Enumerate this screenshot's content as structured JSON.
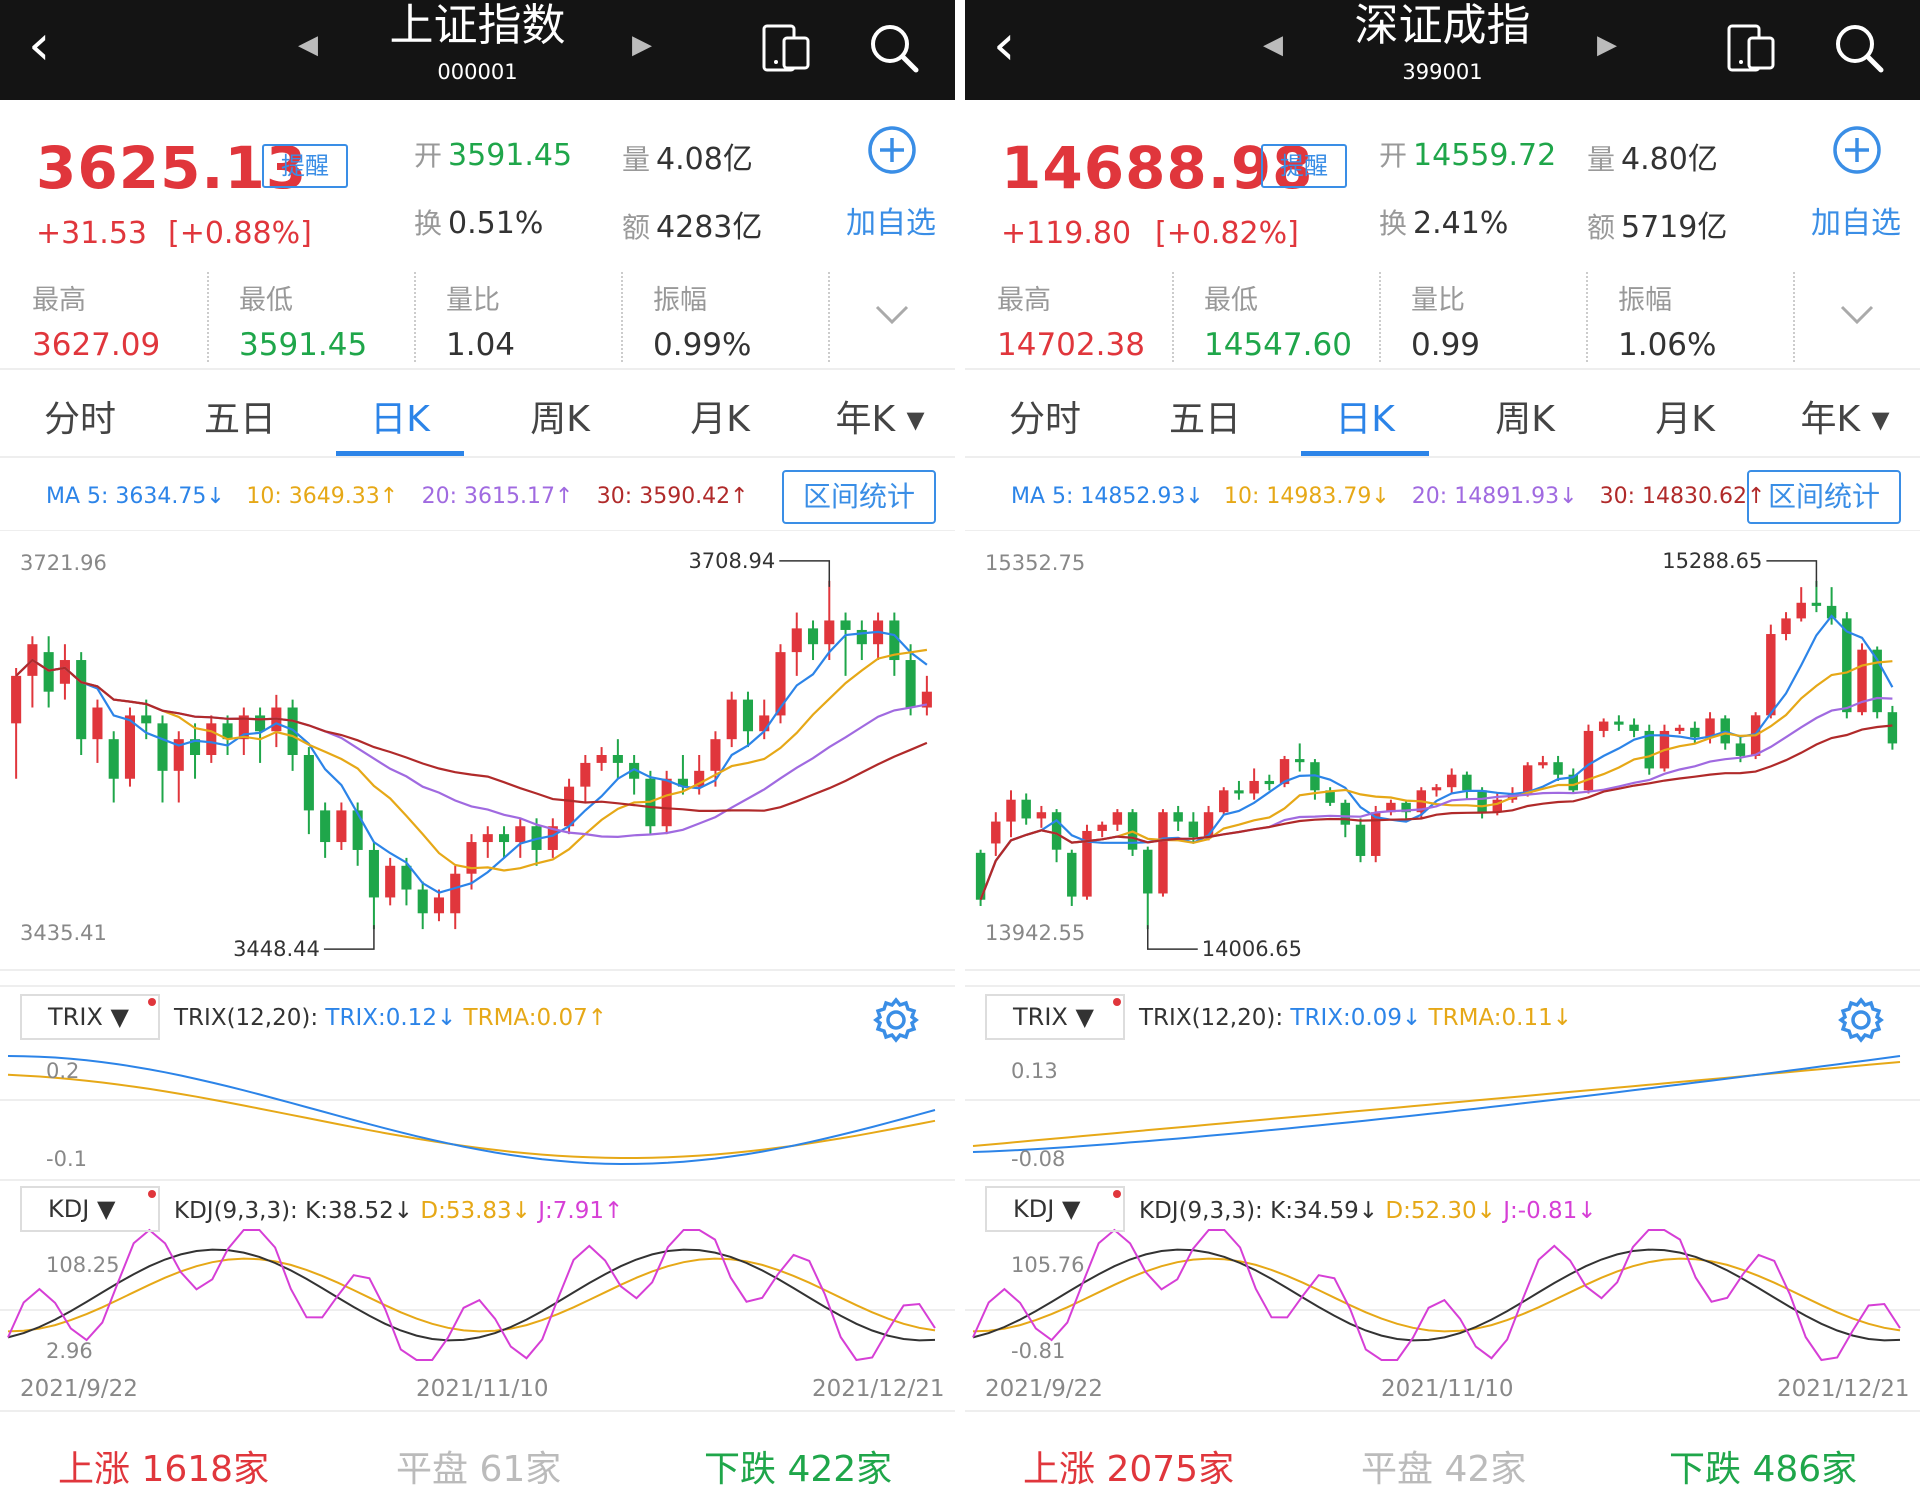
{
  "panels": [
    {
      "title": "上证指数",
      "code": "000001",
      "price": "3625.13",
      "remind_label": "提醒",
      "change": "+31.53",
      "change_pct": "[+0.88%]",
      "open": {
        "label": "开",
        "value": "3591.45"
      },
      "volume": {
        "label": "量",
        "value": "4.08亿"
      },
      "turnover_rate": {
        "label": "换",
        "value": "0.51%"
      },
      "amount": {
        "label": "额",
        "value": "4283亿"
      },
      "add_label": "加自选",
      "stats": [
        {
          "label": "最高",
          "value": "3627.09",
          "color": "#e0363c"
        },
        {
          "label": "最低",
          "value": "3591.45",
          "color": "#1fa64a"
        },
        {
          "label": "量比",
          "value": "1.04",
          "color": "#333333"
        },
        {
          "label": "振幅",
          "value": "0.99%",
          "color": "#333333"
        }
      ],
      "tabs": [
        "分时",
        "五日",
        "日K",
        "周K",
        "月K",
        "年K ▾"
      ],
      "active_tab": 2,
      "ma": [
        {
          "text": "MA 5: 3634.75↓",
          "color": "#2c84e8"
        },
        {
          "text": "10: 3649.33↑",
          "color": "#e6a817"
        },
        {
          "text": "20: 3615.17↑",
          "color": "#a06ae0"
        },
        {
          "text": "30: 3590.42↑",
          "color": "#b02a2a"
        }
      ],
      "range_label": "区间统计",
      "kline": {
        "y_max_label": "3721.96",
        "y_min_label": "3435.41",
        "high_mark": "3708.94",
        "low_mark": "3448.44",
        "candles": [
          [
            3610,
            3640,
            3575,
            3645
          ],
          [
            3640,
            3660,
            3620,
            3665
          ],
          [
            3655,
            3630,
            3620,
            3665
          ],
          [
            3635,
            3650,
            3625,
            3660
          ],
          [
            3650,
            3600,
            3590,
            3655
          ],
          [
            3600,
            3620,
            3585,
            3625
          ],
          [
            3600,
            3575,
            3560,
            3605
          ],
          [
            3575,
            3615,
            3570,
            3620
          ],
          [
            3615,
            3610,
            3600,
            3625
          ],
          [
            3610,
            3580,
            3560,
            3615
          ],
          [
            3580,
            3600,
            3560,
            3605
          ],
          [
            3600,
            3590,
            3575,
            3610
          ],
          [
            3590,
            3610,
            3585,
            3615
          ],
          [
            3610,
            3600,
            3590,
            3615
          ],
          [
            3600,
            3615,
            3590,
            3620
          ],
          [
            3615,
            3605,
            3585,
            3620
          ],
          [
            3605,
            3620,
            3595,
            3628
          ],
          [
            3620,
            3590,
            3580,
            3625
          ],
          [
            3590,
            3555,
            3540,
            3595
          ],
          [
            3555,
            3535,
            3525,
            3560
          ],
          [
            3535,
            3555,
            3530,
            3560
          ],
          [
            3555,
            3530,
            3520,
            3560
          ],
          [
            3530,
            3500,
            3480,
            3535
          ],
          [
            3500,
            3520,
            3495,
            3525
          ],
          [
            3520,
            3505,
            3495,
            3525
          ],
          [
            3505,
            3490,
            3480,
            3510
          ],
          [
            3490,
            3500,
            3485,
            3505
          ],
          [
            3490,
            3515,
            3480,
            3520
          ],
          [
            3515,
            3535,
            3505,
            3540
          ],
          [
            3535,
            3540,
            3525,
            3545
          ],
          [
            3540,
            3535,
            3525,
            3545
          ],
          [
            3535,
            3545,
            3525,
            3550
          ],
          [
            3545,
            3530,
            3520,
            3550
          ],
          [
            3530,
            3545,
            3525,
            3550
          ],
          [
            3545,
            3570,
            3540,
            3575
          ],
          [
            3570,
            3585,
            3560,
            3590
          ],
          [
            3585,
            3590,
            3580,
            3595
          ],
          [
            3590,
            3585,
            3575,
            3600
          ],
          [
            3585,
            3575,
            3565,
            3590
          ],
          [
            3575,
            3545,
            3540,
            3580
          ],
          [
            3545,
            3575,
            3540,
            3580
          ],
          [
            3575,
            3570,
            3565,
            3590
          ],
          [
            3570,
            3580,
            3565,
            3590
          ],
          [
            3580,
            3600,
            3570,
            3605
          ],
          [
            3600,
            3625,
            3595,
            3630
          ],
          [
            3625,
            3605,
            3595,
            3630
          ],
          [
            3605,
            3615,
            3600,
            3625
          ],
          [
            3615,
            3655,
            3610,
            3660
          ],
          [
            3655,
            3670,
            3640,
            3680
          ],
          [
            3670,
            3660,
            3650,
            3675
          ],
          [
            3660,
            3675,
            3650,
            3700
          ],
          [
            3675,
            3669,
            3640,
            3680
          ],
          [
            3669,
            3660,
            3650,
            3675
          ],
          [
            3660,
            3675,
            3650,
            3680
          ],
          [
            3675,
            3650,
            3640,
            3680
          ],
          [
            3650,
            3620,
            3615,
            3660
          ],
          [
            3620,
            3630,
            3615,
            3640
          ]
        ]
      },
      "trix": {
        "button": "TRIX",
        "params": "TRIX(12,20):",
        "trix_val": "TRIX:0.12↓",
        "trma_val": "TRMA:0.07↑",
        "y_top_label": "0.2",
        "y_bot_label": "-0.1"
      },
      "kdj": {
        "button": "KDJ",
        "params": "KDJ(9,3,3):",
        "k_val": "K:38.52↓",
        "d_val": "D:53.83↓",
        "j_val": "J:7.91↑",
        "y_top_label": "108.25",
        "y_bot_label": "2.96"
      },
      "dates": [
        "2021/9/22",
        "2021/11/10",
        "2021/12/21"
      ],
      "breadth": {
        "up_label": "上涨",
        "up_value": "1618家",
        "flat_label": "平盘",
        "flat_value": "61家",
        "down_label": "下跌",
        "down_value": "422家"
      }
    },
    {
      "title": "深证成指",
      "code": "399001",
      "price": "14688.98",
      "remind_label": "提醒",
      "change": "+119.80",
      "change_pct": "[+0.82%]",
      "open": {
        "label": "开",
        "value": "14559.72"
      },
      "volume": {
        "label": "量",
        "value": "4.80亿"
      },
      "turnover_rate": {
        "label": "换",
        "value": "2.41%"
      },
      "amount": {
        "label": "额",
        "value": "5719亿"
      },
      "add_label": "加自选",
      "stats": [
        {
          "label": "最高",
          "value": "14702.38",
          "color": "#e0363c"
        },
        {
          "label": "最低",
          "value": "14547.60",
          "color": "#1fa64a"
        },
        {
          "label": "量比",
          "value": "0.99",
          "color": "#333333"
        },
        {
          "label": "振幅",
          "value": "1.06%",
          "color": "#333333"
        }
      ],
      "tabs": [
        "分时",
        "五日",
        "日K",
        "周K",
        "月K",
        "年K ▾"
      ],
      "active_tab": 2,
      "ma": [
        {
          "text": "MA 5: 14852.93↓",
          "color": "#2c84e8"
        },
        {
          "text": "10: 14983.79↓",
          "color": "#e6a817"
        },
        {
          "text": "20: 14891.93↓",
          "color": "#a06ae0"
        },
        {
          "text": "30: 14830.62↑",
          "color": "#b02a2a"
        }
      ],
      "range_label": "区间统计",
      "kline": {
        "y_max_label": "15352.75",
        "y_min_label": "13942.55",
        "high_mark": "15288.65",
        "low_mark": "14006.65",
        "candles": [
          [
            14250,
            14100,
            14080,
            14260
          ],
          [
            14280,
            14350,
            14240,
            14380
          ],
          [
            14350,
            14420,
            14300,
            14450
          ],
          [
            14420,
            14360,
            14340,
            14440
          ],
          [
            14360,
            14380,
            14330,
            14400
          ],
          [
            14380,
            14260,
            14220,
            14390
          ],
          [
            14250,
            14110,
            14080,
            14260
          ],
          [
            14110,
            14320,
            14100,
            14340
          ],
          [
            14320,
            14340,
            14300,
            14350
          ],
          [
            14340,
            14380,
            14320,
            14390
          ],
          [
            14380,
            14260,
            14240,
            14390
          ],
          [
            14260,
            14120,
            14006,
            14270
          ],
          [
            14120,
            14380,
            14110,
            14390
          ],
          [
            14380,
            14350,
            14320,
            14400
          ],
          [
            14350,
            14300,
            14280,
            14380
          ],
          [
            14300,
            14380,
            14290,
            14400
          ],
          [
            14380,
            14450,
            14370,
            14460
          ],
          [
            14450,
            14440,
            14420,
            14480
          ],
          [
            14440,
            14480,
            14420,
            14520
          ],
          [
            14480,
            14470,
            14450,
            14500
          ],
          [
            14470,
            14550,
            14460,
            14560
          ],
          [
            14550,
            14540,
            14510,
            14600
          ],
          [
            14540,
            14450,
            14420,
            14550
          ],
          [
            14450,
            14410,
            14400,
            14460
          ],
          [
            14410,
            14340,
            14300,
            14420
          ],
          [
            14340,
            14240,
            14220,
            14360
          ],
          [
            14240,
            14380,
            14220,
            14400
          ],
          [
            14380,
            14410,
            14370,
            14420
          ],
          [
            14410,
            14380,
            14360,
            14420
          ],
          [
            14380,
            14450,
            14360,
            14460
          ],
          [
            14450,
            14460,
            14430,
            14470
          ],
          [
            14460,
            14500,
            14440,
            14520
          ],
          [
            14500,
            14450,
            14420,
            14510
          ],
          [
            14450,
            14380,
            14360,
            14460
          ],
          [
            14380,
            14420,
            14370,
            14440
          ],
          [
            14420,
            14440,
            14410,
            14460
          ],
          [
            14440,
            14530,
            14430,
            14540
          ],
          [
            14530,
            14540,
            14520,
            14560
          ],
          [
            14540,
            14500,
            14480,
            14560
          ],
          [
            14500,
            14450,
            14440,
            14520
          ],
          [
            14450,
            14640,
            14440,
            14660
          ],
          [
            14640,
            14670,
            14620,
            14680
          ],
          [
            14670,
            14660,
            14640,
            14690
          ],
          [
            14660,
            14640,
            14620,
            14680
          ],
          [
            14640,
            14520,
            14500,
            14660
          ],
          [
            14520,
            14640,
            14510,
            14660
          ],
          [
            14640,
            14650,
            14630,
            14660
          ],
          [
            14650,
            14620,
            14600,
            14670
          ],
          [
            14620,
            14680,
            14600,
            14700
          ],
          [
            14680,
            14600,
            14580,
            14690
          ],
          [
            14600,
            14560,
            14540,
            14620
          ],
          [
            14560,
            14690,
            14550,
            14700
          ],
          [
            14690,
            14950,
            14680,
            14980
          ],
          [
            14950,
            15000,
            14930,
            15020
          ],
          [
            15000,
            15050,
            14990,
            15100
          ],
          [
            15050,
            15040,
            15020,
            15120
          ],
          [
            15040,
            15000,
            14980,
            15100
          ],
          [
            15000,
            14700,
            14680,
            15020
          ],
          [
            14700,
            14900,
            14690,
            14920
          ],
          [
            14900,
            14700,
            14680,
            14910
          ],
          [
            14700,
            14600,
            14580,
            14720
          ]
        ]
      },
      "trix": {
        "button": "TRIX",
        "params": "TRIX(12,20):",
        "trix_val": "TRIX:0.09↓",
        "trma_val": "TRMA:0.11↓",
        "y_top_label": "0.13",
        "y_bot_label": "-0.08"
      },
      "kdj": {
        "button": "KDJ",
        "params": "KDJ(9,3,3):",
        "k_val": "K:34.59↓",
        "d_val": "D:52.30↓",
        "j_val": "J:-0.81↓",
        "y_top_label": "105.76",
        "y_bot_label": "-0.81"
      },
      "dates": [
        "2021/9/22",
        "2021/11/10",
        "2021/12/21"
      ],
      "breadth": {
        "up_label": "上涨",
        "up_value": "2075家",
        "flat_label": "平盘",
        "flat_value": "42家",
        "down_label": "下跌",
        "down_value": "486家"
      }
    }
  ],
  "colors": {
    "up": "#e0363c",
    "down": "#1fa64a",
    "ma5": "#2c84e8",
    "ma10": "#e6a817",
    "ma20": "#a06ae0",
    "ma30": "#b02a2a",
    "accent": "#2c84e8"
  }
}
